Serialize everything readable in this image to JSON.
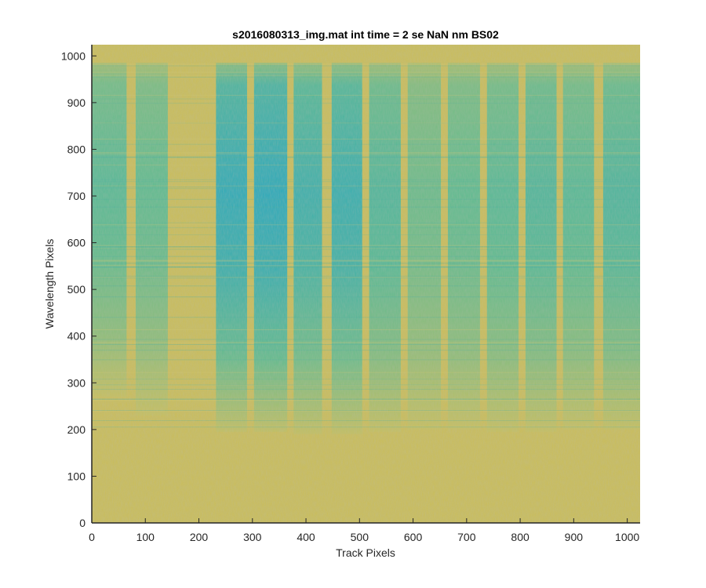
{
  "chart_data": {
    "type": "heatmap",
    "title": "s2016080313_img.mat int time = 2 se  NaN nm BS02",
    "xlabel": "Track Pixels",
    "ylabel": "Wavelength Pixels",
    "xlim": [
      0,
      1024
    ],
    "ylim": [
      0,
      1024
    ],
    "x_ticks": [
      0,
      100,
      200,
      300,
      400,
      500,
      600,
      700,
      800,
      900,
      1000
    ],
    "y_ticks": [
      0,
      100,
      200,
      300,
      400,
      500,
      600,
      700,
      800,
      900,
      1000
    ],
    "grid": false,
    "colormap": "parula",
    "background_color": "#c9bd5a",
    "track_bands": [
      {
        "x_start": 0,
        "x_end": 65,
        "y_top": 985,
        "y_bottom": 270,
        "intensity": 0.55
      },
      {
        "x_start": 82,
        "x_end": 142,
        "y_top": 985,
        "y_bottom": 230,
        "intensity": 0.5
      },
      {
        "x_start": 232,
        "x_end": 290,
        "y_top": 985,
        "y_bottom": 195,
        "intensity": 0.85
      },
      {
        "x_start": 303,
        "x_end": 365,
        "y_top": 985,
        "y_bottom": 195,
        "intensity": 0.88
      },
      {
        "x_start": 377,
        "x_end": 430,
        "y_top": 985,
        "y_bottom": 190,
        "intensity": 0.75
      },
      {
        "x_start": 448,
        "x_end": 505,
        "y_top": 985,
        "y_bottom": 190,
        "intensity": 0.78
      },
      {
        "x_start": 518,
        "x_end": 577,
        "y_top": 985,
        "y_bottom": 195,
        "intensity": 0.6
      },
      {
        "x_start": 590,
        "x_end": 652,
        "y_top": 985,
        "y_bottom": 200,
        "intensity": 0.45
      },
      {
        "x_start": 665,
        "x_end": 725,
        "y_top": 985,
        "y_bottom": 200,
        "intensity": 0.5
      },
      {
        "x_start": 738,
        "x_end": 797,
        "y_top": 985,
        "y_bottom": 195,
        "intensity": 0.55
      },
      {
        "x_start": 810,
        "x_end": 868,
        "y_top": 985,
        "y_bottom": 195,
        "intensity": 0.6
      },
      {
        "x_start": 880,
        "x_end": 938,
        "y_top": 985,
        "y_bottom": 200,
        "intensity": 0.55
      },
      {
        "x_start": 955,
        "x_end": 1024,
        "y_top": 985,
        "y_bottom": 200,
        "intensity": 0.62
      }
    ],
    "colors": {
      "low": "#cbbf5b",
      "mid": "#5fbb8f",
      "high": "#1aa3c6"
    }
  }
}
